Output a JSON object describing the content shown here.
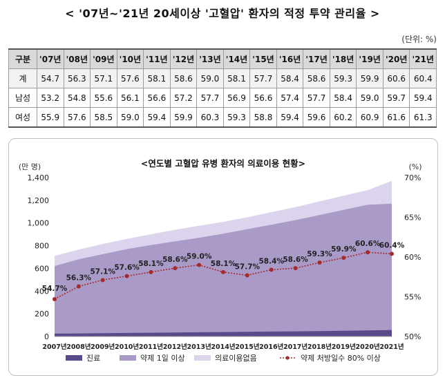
{
  "title": "<  '07년~'21년 20세이상 '고혈압' 환자의 적정 투약 관리율  >",
  "unit_label": "(단위: %)",
  "table": {
    "headers": [
      "구분",
      "'07년",
      "'08년",
      "'09년",
      "'10년",
      "'11년",
      "'12년",
      "'13년",
      "'14년",
      "'15년",
      "'16년",
      "'17년",
      "'18년",
      "'19년",
      "'20년",
      "'21년"
    ],
    "rows": [
      {
        "label": "계",
        "values": [
          "54.7",
          "56.3",
          "57.1",
          "57.6",
          "58.1",
          "58.6",
          "59.0",
          "58.1",
          "57.7",
          "58.4",
          "58.6",
          "59.3",
          "59.9",
          "60.6",
          "60.4"
        ]
      },
      {
        "label": "남성",
        "values": [
          "53.2",
          "54.8",
          "55.6",
          "56.1",
          "56.6",
          "57.2",
          "57.7",
          "56.9",
          "56.6",
          "57.4",
          "57.7",
          "58.4",
          "59.0",
          "59.7",
          "59.4"
        ]
      },
      {
        "label": "여성",
        "values": [
          "55.9",
          "57.6",
          "58.5",
          "59.0",
          "59.4",
          "59.9",
          "60.3",
          "59.3",
          "58.8",
          "59.4",
          "59.6",
          "60.2",
          "60.9",
          "61.6",
          "61.3"
        ]
      }
    ]
  },
  "chart_data": {
    "type": "area",
    "title": "<연도별 고혈압 유병 환자의 의료이용 현황>",
    "ylabel": "(만 명)",
    "y2label": "(%)",
    "x": [
      "2007년",
      "2008년",
      "2009년",
      "2010년",
      "2011년",
      "2012년",
      "2013년",
      "2014년",
      "2015년",
      "2016년",
      "2017년",
      "2018년",
      "2019년",
      "2020년",
      "2021년"
    ],
    "ylim": [
      0,
      1400
    ],
    "yticks": [
      "0",
      "200",
      "400",
      "600",
      "800",
      "1,000",
      "1,200",
      "1,400"
    ],
    "y2lim": [
      50,
      70
    ],
    "y2ticks": [
      "50%",
      "55%",
      "60%",
      "65%",
      "70%"
    ],
    "legend_position": "bottom",
    "series": [
      {
        "name": "진료",
        "kind": "area",
        "color": "#5b4a8a",
        "values": [
          25,
          27,
          29,
          31,
          33,
          35,
          37,
          39,
          41,
          43,
          45,
          47,
          50,
          53,
          57
        ]
      },
      {
        "name": "약제 1일 이상",
        "kind": "area",
        "color": "#a99ac8",
        "values": [
          620,
          680,
          725,
          770,
          805,
          838,
          870,
          905,
          945,
          985,
          1025,
          1070,
          1115,
          1160,
          1170
        ]
      },
      {
        "name": "의료이용없음",
        "kind": "area",
        "color": "#dcd4ec",
        "values": [
          710,
          765,
          815,
          860,
          900,
          940,
          975,
          1010,
          1050,
          1095,
          1140,
          1190,
          1240,
          1290,
          1370
        ]
      },
      {
        "name": "약제 처방일수 80% 이상",
        "kind": "line",
        "axis": "right",
        "color": "#a52a2a",
        "values": [
          54.7,
          56.3,
          57.1,
          57.6,
          58.1,
          58.6,
          59.0,
          58.1,
          57.7,
          58.4,
          58.6,
          59.3,
          59.9,
          60.6,
          60.4
        ],
        "labels": [
          "54.7%",
          "56.3%",
          "57.1%",
          "57.6%",
          "58.1%",
          "58.6%",
          "59.0%",
          "58.1%",
          "57.7%",
          "58.4%",
          "58.6%",
          "59.3%",
          "59.9%",
          "60.6%",
          "60.4%"
        ]
      }
    ]
  }
}
